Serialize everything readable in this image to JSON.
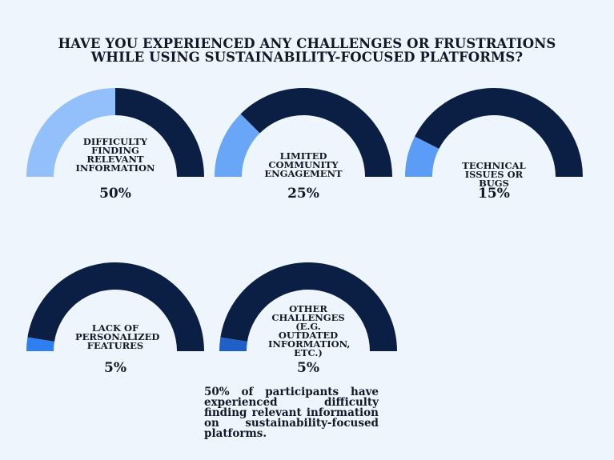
{
  "title_lines": [
    "HAVE YOU EXPERIENCED ANY CHALLENGES OR FRUSTRATIONS",
    "WHILE USING SUSTAINABILITY-FOCUSED PLATFORMS?"
  ],
  "colors": {
    "track": "#0b1f44",
    "background": "#eef5fd"
  },
  "chart_data": {
    "type": "gauge",
    "title": "HAVE YOU EXPERIENCED ANY CHALLENGES OR FRUSTRATIONS WHILE USING SUSTAINABILITY-FOCUSED PLATFORMS?",
    "unit": "%",
    "series": [
      {
        "name": "DIFFICULTY FINDING RELEVANT INFORMATION",
        "value": 50,
        "display": "50%",
        "color": "#93c0fa"
      },
      {
        "name": "LIMITED COMMUNITY ENGAGEMENT",
        "value": 25,
        "display": "25%",
        "color": "#6aa6f8"
      },
      {
        "name": "TECHNICAL ISSUES OR BUGS",
        "value": 15,
        "display": "15%",
        "color": "#5b9cf6"
      },
      {
        "name": "LACK OF PERSONALIZED FEATURES",
        "value": 5,
        "display": "5%",
        "color": "#2f7ef2"
      },
      {
        "name": "OTHER CHALLENGES (E.G. OUTDATED INFORMATION, ETC.)",
        "value": 5,
        "display": "5%",
        "color": "#1f5fc8"
      }
    ]
  },
  "note": "50% of participants have experienced difficulty finding relevant information on sustainability-focused platforms."
}
